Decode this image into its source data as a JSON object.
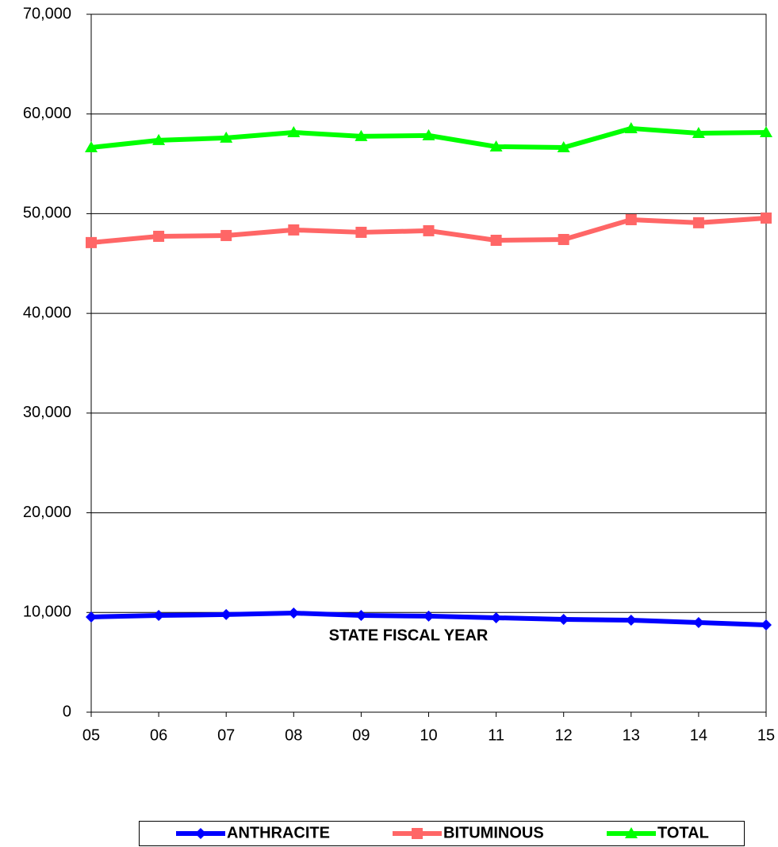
{
  "chart_data": {
    "type": "line",
    "x_label": "STATE FISCAL YEAR",
    "categories": [
      "05",
      "06",
      "07",
      "08",
      "09",
      "10",
      "11",
      "12",
      "13",
      "14",
      "15"
    ],
    "series": [
      {
        "name": "ANTHRACITE",
        "color": "#0000ff",
        "marker": "diamond",
        "values": [
          9550,
          9700,
          9790,
          9940,
          9700,
          9630,
          9470,
          9310,
          9230,
          8990,
          8750
        ]
      },
      {
        "name": "BITUMINOUS",
        "color": "#ff6666",
        "marker": "square",
        "values": [
          47100,
          47730,
          47810,
          48370,
          48130,
          48290,
          47330,
          47410,
          49400,
          49090,
          49560
        ]
      },
      {
        "name": "TOTAL",
        "color": "#00ff00",
        "marker": "triangle",
        "values": [
          56640,
          57360,
          57600,
          58150,
          57760,
          57840,
          56720,
          56640,
          58550,
          58070,
          58150
        ]
      }
    ],
    "ylim": [
      0,
      70000
    ],
    "yticks": [
      0,
      {
        "value": 10000,
        "label": "10,000"
      },
      {
        "value": 20000,
        "label": "20,000"
      },
      {
        "value": 30000,
        "label": "30,000"
      },
      {
        "value": 40000,
        "label": "40,000"
      },
      {
        "value": 50000,
        "label": "50,000"
      },
      {
        "value": 60000,
        "label": "60,000"
      },
      {
        "value": 70000,
        "label": "70,000"
      }
    ],
    "grid": true,
    "legend": "bottom"
  }
}
